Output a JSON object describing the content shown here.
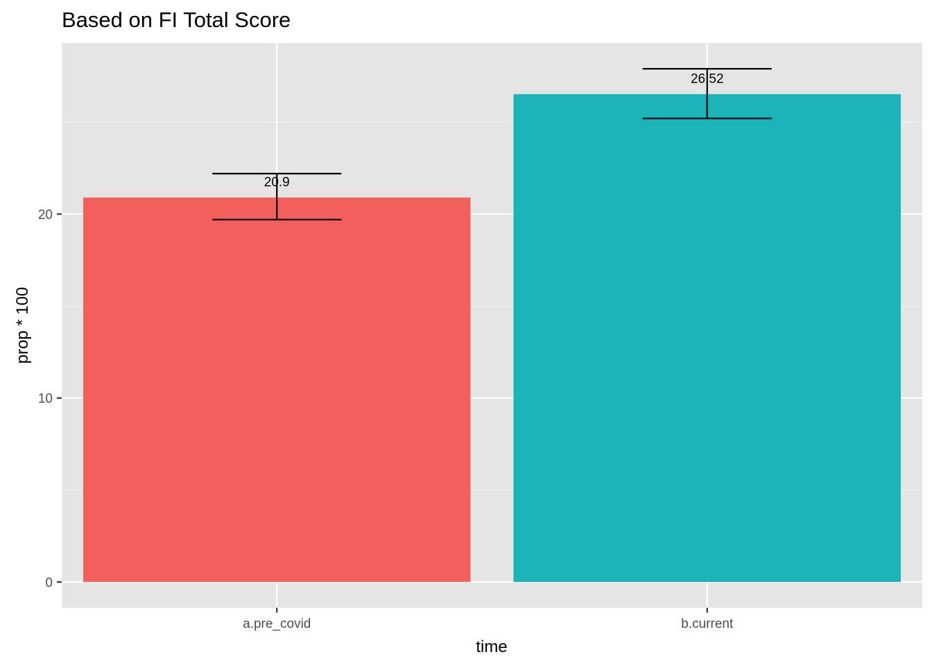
{
  "chart_data": {
    "type": "bar",
    "title": "Based on FI Total Score",
    "xlabel": "time",
    "ylabel": "prop * 100",
    "categories": [
      "a.pre_covid",
      "b.current"
    ],
    "values": [
      20.9,
      26.52
    ],
    "data_labels": [
      "20.9",
      "26.52"
    ],
    "error_bars": [
      {
        "low": 19.7,
        "high": 22.2
      },
      {
        "low": 25.2,
        "high": 27.9
      }
    ],
    "bar_colors": [
      "#F2605C",
      "#1AB3B8"
    ],
    "ylim": [
      -1.4,
      29.3
    ],
    "yticks": [
      0,
      10,
      20
    ],
    "ytick_labels": [
      "0",
      "10",
      "20"
    ],
    "grid": true,
    "legend": "none"
  },
  "colors": {
    "panel_background": "#E5E5E5",
    "grid_major": "#FFFFFF",
    "grid_minor": "#F2F2F2",
    "error_bar": "#000000"
  }
}
